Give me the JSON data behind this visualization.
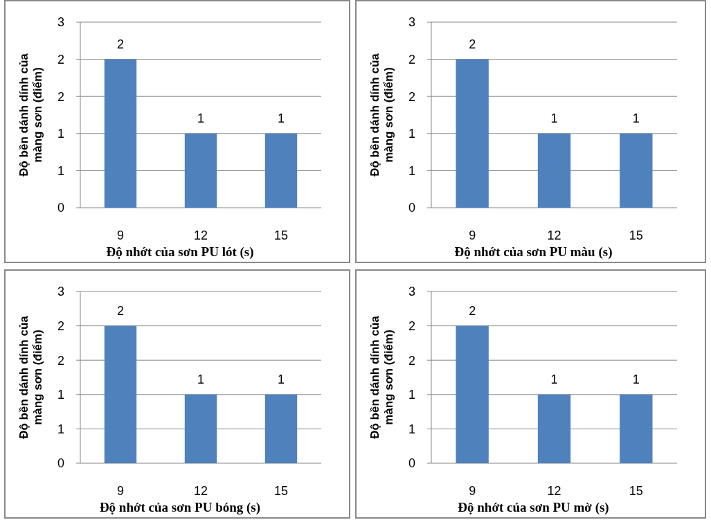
{
  "chart_data": [
    {
      "type": "bar",
      "xlabel": "Độ nhớt của sơn PU lót (s)",
      "ylabel": "Độ bền dánh dính của màng sơn (điểm)",
      "categories": [
        "9",
        "12",
        "15"
      ],
      "values": [
        2,
        1,
        1
      ],
      "color": "#4f81bd",
      "ylim": [
        0,
        2.5
      ],
      "yticks": [
        0,
        {
          "value": 0.5,
          "label": "1"
        },
        1,
        {
          "value": 1.5,
          "label": "2"
        },
        2,
        {
          "value": 2.5,
          "label": "3"
        }
      ],
      "grid": "y",
      "data_labels": true
    },
    {
      "type": "bar",
      "xlabel": "Độ nhớt của sơn PU màu (s)",
      "ylabel": "Độ bền dánh dính của màng sơn (điểm)",
      "categories": [
        "9",
        "12",
        "15"
      ],
      "values": [
        2,
        1,
        1
      ],
      "color": "#4f81bd",
      "ylim": [
        0,
        2.5
      ],
      "yticks": [
        0,
        {
          "value": 0.5,
          "label": "1"
        },
        1,
        {
          "value": 1.5,
          "label": "2"
        },
        2,
        {
          "value": 2.5,
          "label": "3"
        }
      ],
      "grid": "y",
      "data_labels": true
    },
    {
      "type": "bar",
      "xlabel": "Độ nhớt của sơn PU bóng (s)",
      "ylabel": "Độ bền dánh dính của màng sơn (điểm)",
      "categories": [
        "9",
        "12",
        "15"
      ],
      "values": [
        2,
        1,
        1
      ],
      "color": "#4f81bd",
      "ylim": [
        0,
        2.5
      ],
      "yticks": [
        0,
        {
          "value": 0.5,
          "label": "1"
        },
        1,
        {
          "value": 1.5,
          "label": "2"
        },
        2,
        {
          "value": 2.5,
          "label": "3"
        }
      ],
      "grid": "y",
      "data_labels": true
    },
    {
      "type": "bar",
      "xlabel": "Độ nhớt của sơn PU mờ (s)",
      "ylabel": "Độ bền dánh dính của màng sơn (điểm)",
      "categories": [
        "9",
        "12",
        "15"
      ],
      "values": [
        2,
        1,
        1
      ],
      "color": "#4f81bd",
      "ylim": [
        0,
        2.5
      ],
      "yticks": [
        0,
        {
          "value": 0.5,
          "label": "1"
        },
        1,
        {
          "value": 1.5,
          "label": "2"
        },
        2,
        {
          "value": 2.5,
          "label": "3"
        }
      ],
      "grid": "y",
      "data_labels": true
    }
  ]
}
